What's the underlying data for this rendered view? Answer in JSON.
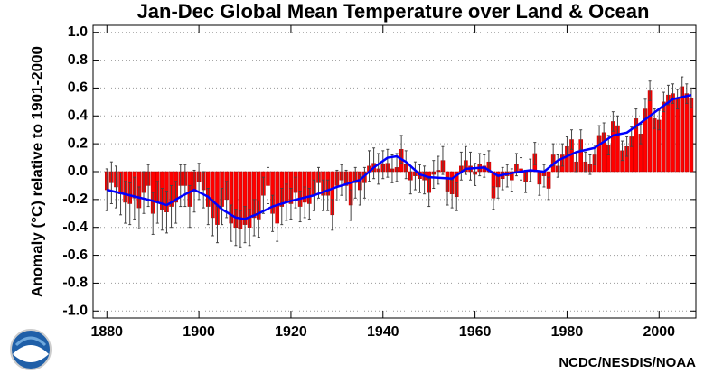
{
  "chart_data": {
    "type": "bar",
    "title": "Jan-Dec Global Mean Temperature over Land & Ocean",
    "y_label": "Anomaly (°C) relative to 1901-2000",
    "source": "NCDC/NESDIS/NOAA",
    "x": [
      1880,
      1881,
      1882,
      1883,
      1884,
      1885,
      1886,
      1887,
      1888,
      1889,
      1890,
      1891,
      1892,
      1893,
      1894,
      1895,
      1896,
      1897,
      1898,
      1899,
      1900,
      1901,
      1902,
      1903,
      1904,
      1905,
      1906,
      1907,
      1908,
      1909,
      1910,
      1911,
      1912,
      1913,
      1914,
      1915,
      1916,
      1917,
      1918,
      1919,
      1920,
      1921,
      1922,
      1923,
      1924,
      1925,
      1926,
      1927,
      1928,
      1929,
      1930,
      1931,
      1932,
      1933,
      1934,
      1935,
      1936,
      1937,
      1938,
      1939,
      1940,
      1941,
      1942,
      1943,
      1944,
      1945,
      1946,
      1947,
      1948,
      1949,
      1950,
      1951,
      1952,
      1953,
      1954,
      1955,
      1956,
      1957,
      1958,
      1959,
      1960,
      1961,
      1962,
      1963,
      1964,
      1965,
      1966,
      1967,
      1968,
      1969,
      1970,
      1971,
      1972,
      1973,
      1974,
      1975,
      1976,
      1977,
      1978,
      1979,
      1980,
      1981,
      1982,
      1983,
      1984,
      1985,
      1986,
      1987,
      1988,
      1989,
      1990,
      1991,
      1992,
      1993,
      1994,
      1995,
      1996,
      1997,
      1998,
      1999,
      2000,
      2001,
      2002,
      2003,
      2004,
      2005,
      2006,
      2007
    ],
    "values": [
      -0.13,
      -0.08,
      -0.11,
      -0.16,
      -0.22,
      -0.23,
      -0.19,
      -0.26,
      -0.15,
      -0.1,
      -0.3,
      -0.22,
      -0.27,
      -0.29,
      -0.25,
      -0.22,
      -0.1,
      -0.1,
      -0.25,
      -0.14,
      -0.07,
      -0.13,
      -0.25,
      -0.33,
      -0.38,
      -0.25,
      -0.2,
      -0.37,
      -0.4,
      -0.41,
      -0.38,
      -0.4,
      -0.33,
      -0.34,
      -0.17,
      -0.1,
      -0.3,
      -0.37,
      -0.25,
      -0.22,
      -0.23,
      -0.15,
      -0.25,
      -0.22,
      -0.23,
      -0.17,
      -0.08,
      -0.17,
      -0.17,
      -0.31,
      -0.1,
      -0.06,
      -0.1,
      -0.24,
      -0.08,
      -0.13,
      -0.08,
      0.04,
      0.06,
      0.02,
      0.05,
      0.06,
      0.02,
      0.03,
      0.16,
      0.05,
      -0.06,
      -0.03,
      -0.05,
      -0.06,
      -0.15,
      -0.02,
      0.01,
      0.08,
      -0.14,
      -0.16,
      -0.18,
      0.04,
      0.08,
      0.04,
      -0.02,
      0.05,
      0.04,
      0.07,
      -0.19,
      -0.11,
      -0.05,
      -0.03,
      -0.06,
      0.05,
      0.02,
      -0.07,
      0.01,
      0.13,
      -0.09,
      -0.03,
      -0.12,
      0.12,
      0.04,
      0.12,
      0.18,
      0.23,
      0.07,
      0.23,
      0.07,
      0.05,
      0.12,
      0.26,
      0.28,
      0.19,
      0.36,
      0.33,
      0.15,
      0.18,
      0.25,
      0.38,
      0.27,
      0.45,
      0.58,
      0.38,
      0.37,
      0.5,
      0.55,
      0.56,
      0.52,
      0.61,
      0.56,
      0.53
    ],
    "errors": [
      0.15,
      0.15,
      0.15,
      0.15,
      0.15,
      0.15,
      0.15,
      0.15,
      0.15,
      0.15,
      0.15,
      0.15,
      0.15,
      0.15,
      0.15,
      0.15,
      0.15,
      0.15,
      0.15,
      0.15,
      0.13,
      0.13,
      0.13,
      0.13,
      0.13,
      0.13,
      0.13,
      0.13,
      0.13,
      0.13,
      0.13,
      0.13,
      0.13,
      0.13,
      0.13,
      0.13,
      0.13,
      0.13,
      0.13,
      0.13,
      0.11,
      0.11,
      0.11,
      0.11,
      0.11,
      0.11,
      0.11,
      0.11,
      0.11,
      0.11,
      0.11,
      0.11,
      0.11,
      0.11,
      0.11,
      0.11,
      0.11,
      0.11,
      0.11,
      0.11,
      0.1,
      0.1,
      0.1,
      0.1,
      0.1,
      0.1,
      0.1,
      0.1,
      0.1,
      0.1,
      0.1,
      0.1,
      0.1,
      0.1,
      0.1,
      0.1,
      0.1,
      0.1,
      0.1,
      0.1,
      0.08,
      0.08,
      0.08,
      0.08,
      0.08,
      0.08,
      0.08,
      0.08,
      0.08,
      0.08,
      0.08,
      0.08,
      0.08,
      0.08,
      0.08,
      0.08,
      0.08,
      0.08,
      0.08,
      0.08,
      0.07,
      0.07,
      0.07,
      0.07,
      0.07,
      0.07,
      0.07,
      0.07,
      0.07,
      0.07,
      0.07,
      0.07,
      0.07,
      0.07,
      0.07,
      0.07,
      0.07,
      0.07,
      0.07,
      0.07,
      0.07,
      0.07,
      0.07,
      0.07,
      0.07,
      0.07,
      0.07,
      0.07
    ],
    "color": "#ff0000",
    "error_color": "#444444",
    "smooth": {
      "color": "#0000ff",
      "x": [
        1880,
        1885,
        1890,
        1893,
        1896,
        1899,
        1902,
        1905,
        1908,
        1910,
        1913,
        1916,
        1920,
        1925,
        1930,
        1935,
        1938,
        1941,
        1943,
        1945,
        1948,
        1950,
        1955,
        1958,
        1962,
        1965,
        1968,
        1972,
        1975,
        1978,
        1982,
        1986,
        1990,
        1993,
        1996,
        2000,
        2003,
        2007
      ],
      "values": [
        -0.13,
        -0.17,
        -0.21,
        -0.24,
        -0.18,
        -0.13,
        -0.18,
        -0.27,
        -0.33,
        -0.34,
        -0.3,
        -0.25,
        -0.21,
        -0.17,
        -0.11,
        -0.06,
        0.03,
        0.1,
        0.11,
        0.07,
        -0.02,
        -0.04,
        -0.05,
        0.02,
        0.03,
        -0.03,
        -0.01,
        0.01,
        0,
        0.08,
        0.14,
        0.17,
        0.26,
        0.28,
        0.35,
        0.45,
        0.52,
        0.55
      ]
    },
    "xlim": [
      1877,
      2008
    ],
    "xticks": [
      1880,
      1900,
      1920,
      1940,
      1960,
      1980,
      2000
    ],
    "ylim": [
      -1.05,
      1.05
    ],
    "yticks": [
      {
        "value": 1,
        "label": "1.0"
      },
      0.8,
      0.6,
      0.4,
      0.2,
      {
        "value": 0,
        "label": "0.0"
      },
      -0.2,
      -0.4,
      -0.6,
      -0.8,
      {
        "value": -1,
        "label": "-1.0"
      }
    ],
    "grid": true
  }
}
